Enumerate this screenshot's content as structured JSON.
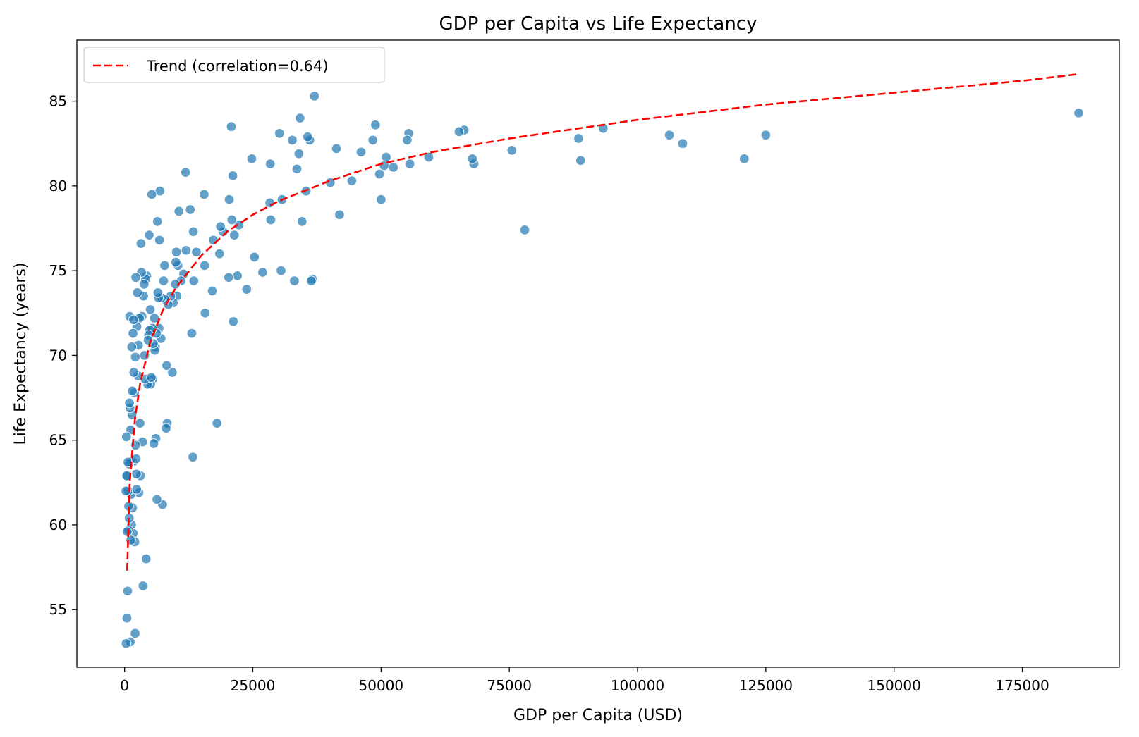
{
  "chart_data": {
    "type": "scatter",
    "title": "GDP per Capita vs Life Expectancy",
    "xlabel": "GDP per Capita (USD)",
    "ylabel": "Life Expectancy (years)",
    "xlim": [
      -9300,
      193900
    ],
    "ylim": [
      51.6,
      88.6
    ],
    "xticks": [
      0,
      25000,
      50000,
      75000,
      100000,
      125000,
      150000,
      175000
    ],
    "yticks": [
      55,
      60,
      65,
      70,
      75,
      80,
      85
    ],
    "grid": false,
    "legend_placement": "top-left",
    "point_color": "#1f77b4",
    "trend_color": "#ff0000",
    "trend_label": "Trend (correlation=0.64)",
    "trend_line": {
      "x": [
        500,
        1000,
        2000,
        3000,
        5000,
        7500,
        10000,
        15000,
        20000,
        25000,
        30000,
        40000,
        50000,
        60000,
        75000,
        100000,
        125000,
        150000,
        175000,
        186000
      ],
      "y": [
        57.3,
        62.5,
        66.2,
        68.3,
        70.8,
        72.7,
        74.0,
        75.9,
        77.3,
        78.3,
        79.1,
        80.3,
        81.3,
        82.0,
        82.8,
        83.9,
        84.8,
        85.5,
        86.2,
        86.6
      ]
    },
    "points": [
      {
        "x": 186000,
        "y": 84.3
      },
      {
        "x": 125000,
        "y": 83.0
      },
      {
        "x": 120800,
        "y": 81.6
      },
      {
        "x": 108800,
        "y": 82.5
      },
      {
        "x": 106200,
        "y": 83.0
      },
      {
        "x": 93300,
        "y": 83.4
      },
      {
        "x": 88900,
        "y": 81.5
      },
      {
        "x": 88500,
        "y": 82.8
      },
      {
        "x": 78000,
        "y": 77.4
      },
      {
        "x": 75500,
        "y": 82.1
      },
      {
        "x": 68100,
        "y": 81.3
      },
      {
        "x": 67800,
        "y": 81.6
      },
      {
        "x": 66200,
        "y": 83.3
      },
      {
        "x": 65200,
        "y": 83.2
      },
      {
        "x": 59300,
        "y": 81.7
      },
      {
        "x": 55600,
        "y": 81.3
      },
      {
        "x": 55400,
        "y": 83.1
      },
      {
        "x": 55100,
        "y": 82.7
      },
      {
        "x": 52400,
        "y": 81.1
      },
      {
        "x": 51000,
        "y": 81.7
      },
      {
        "x": 50600,
        "y": 81.2
      },
      {
        "x": 50000,
        "y": 79.2
      },
      {
        "x": 49700,
        "y": 80.7
      },
      {
        "x": 48900,
        "y": 83.6
      },
      {
        "x": 48400,
        "y": 82.7
      },
      {
        "x": 46100,
        "y": 82.0
      },
      {
        "x": 44300,
        "y": 80.3
      },
      {
        "x": 41900,
        "y": 78.3
      },
      {
        "x": 41300,
        "y": 82.2
      },
      {
        "x": 40100,
        "y": 80.2
      },
      {
        "x": 37000,
        "y": 85.3
      },
      {
        "x": 36600,
        "y": 74.5
      },
      {
        "x": 36400,
        "y": 74.4
      },
      {
        "x": 36100,
        "y": 82.7
      },
      {
        "x": 35700,
        "y": 82.9
      },
      {
        "x": 35400,
        "y": 79.7
      },
      {
        "x": 34600,
        "y": 77.9
      },
      {
        "x": 34200,
        "y": 84.0
      },
      {
        "x": 34000,
        "y": 81.9
      },
      {
        "x": 33600,
        "y": 81.0
      },
      {
        "x": 33100,
        "y": 74.4
      },
      {
        "x": 32700,
        "y": 82.7
      },
      {
        "x": 30700,
        "y": 79.2
      },
      {
        "x": 30500,
        "y": 75.0
      },
      {
        "x": 30200,
        "y": 83.1
      },
      {
        "x": 28500,
        "y": 78.0
      },
      {
        "x": 28400,
        "y": 81.3
      },
      {
        "x": 28300,
        "y": 79.0
      },
      {
        "x": 26900,
        "y": 74.9
      },
      {
        "x": 25300,
        "y": 75.8
      },
      {
        "x": 24800,
        "y": 81.6
      },
      {
        "x": 23800,
        "y": 73.9
      },
      {
        "x": 22300,
        "y": 77.7
      },
      {
        "x": 22000,
        "y": 74.7
      },
      {
        "x": 21400,
        "y": 77.1
      },
      {
        "x": 21200,
        "y": 72.0
      },
      {
        "x": 21100,
        "y": 80.6
      },
      {
        "x": 20900,
        "y": 78.0
      },
      {
        "x": 20800,
        "y": 83.5
      },
      {
        "x": 20400,
        "y": 79.2
      },
      {
        "x": 20300,
        "y": 74.6
      },
      {
        "x": 19200,
        "y": 77.3
      },
      {
        "x": 18700,
        "y": 77.6
      },
      {
        "x": 18500,
        "y": 76.0
      },
      {
        "x": 18000,
        "y": 66.0
      },
      {
        "x": 17300,
        "y": 76.8
      },
      {
        "x": 17100,
        "y": 73.8
      },
      {
        "x": 15700,
        "y": 72.5
      },
      {
        "x": 15600,
        "y": 75.3
      },
      {
        "x": 15500,
        "y": 79.5
      },
      {
        "x": 14000,
        "y": 76.1
      },
      {
        "x": 13500,
        "y": 74.4
      },
      {
        "x": 13400,
        "y": 77.3
      },
      {
        "x": 13300,
        "y": 64.0
      },
      {
        "x": 13100,
        "y": 71.3
      },
      {
        "x": 12800,
        "y": 78.6
      },
      {
        "x": 12000,
        "y": 76.2
      },
      {
        "x": 11900,
        "y": 80.8
      },
      {
        "x": 11500,
        "y": 74.8
      },
      {
        "x": 11000,
        "y": 74.4
      },
      {
        "x": 10600,
        "y": 78.5
      },
      {
        "x": 10400,
        "y": 75.3
      },
      {
        "x": 10200,
        "y": 73.5
      },
      {
        "x": 10100,
        "y": 76.1
      },
      {
        "x": 10000,
        "y": 75.5
      },
      {
        "x": 9900,
        "y": 74.2
      },
      {
        "x": 9500,
        "y": 73.1
      },
      {
        "x": 9300,
        "y": 69.0
      },
      {
        "x": 9000,
        "y": 73.5
      },
      {
        "x": 8500,
        "y": 73.0
      },
      {
        "x": 8300,
        "y": 66.0
      },
      {
        "x": 8200,
        "y": 69.4
      },
      {
        "x": 8100,
        "y": 65.7
      },
      {
        "x": 7900,
        "y": 73.3
      },
      {
        "x": 7800,
        "y": 75.3
      },
      {
        "x": 7600,
        "y": 74.4
      },
      {
        "x": 7400,
        "y": 61.2
      },
      {
        "x": 7200,
        "y": 73.4
      },
      {
        "x": 7100,
        "y": 71.0
      },
      {
        "x": 6900,
        "y": 79.7
      },
      {
        "x": 6800,
        "y": 76.8
      },
      {
        "x": 6700,
        "y": 71.6
      },
      {
        "x": 6600,
        "y": 73.4
      },
      {
        "x": 6500,
        "y": 73.7
      },
      {
        "x": 6400,
        "y": 77.9
      },
      {
        "x": 6300,
        "y": 61.5
      },
      {
        "x": 6200,
        "y": 71.3
      },
      {
        "x": 6100,
        "y": 65.1
      },
      {
        "x": 6000,
        "y": 70.5
      },
      {
        "x": 5900,
        "y": 70.3
      },
      {
        "x": 5800,
        "y": 72.2
      },
      {
        "x": 5700,
        "y": 64.8
      },
      {
        "x": 5600,
        "y": 70.7
      },
      {
        "x": 5500,
        "y": 68.6
      },
      {
        "x": 5400,
        "y": 71.6
      },
      {
        "x": 5300,
        "y": 79.5
      },
      {
        "x": 5100,
        "y": 68.3
      },
      {
        "x": 5000,
        "y": 72.7
      },
      {
        "x": 4900,
        "y": 71.5
      },
      {
        "x": 4800,
        "y": 77.1
      },
      {
        "x": 4700,
        "y": 71.2
      },
      {
        "x": 4500,
        "y": 68.3
      },
      {
        "x": 4300,
        "y": 74.7
      },
      {
        "x": 4200,
        "y": 58.0
      },
      {
        "x": 4100,
        "y": 74.5
      },
      {
        "x": 4000,
        "y": 68.6
      },
      {
        "x": 3900,
        "y": 70.0
      },
      {
        "x": 3800,
        "y": 74.2
      },
      {
        "x": 3700,
        "y": 73.5
      },
      {
        "x": 3600,
        "y": 56.4
      },
      {
        "x": 3500,
        "y": 64.9
      },
      {
        "x": 3400,
        "y": 72.3
      },
      {
        "x": 3300,
        "y": 74.9
      },
      {
        "x": 3200,
        "y": 76.6
      },
      {
        "x": 3100,
        "y": 62.9
      },
      {
        "x": 3000,
        "y": 66.0
      },
      {
        "x": 2900,
        "y": 72.2
      },
      {
        "x": 2800,
        "y": 61.9
      },
      {
        "x": 2700,
        "y": 70.6
      },
      {
        "x": 2600,
        "y": 68.8
      },
      {
        "x": 2500,
        "y": 73.7
      },
      {
        "x": 2400,
        "y": 71.7
      },
      {
        "x": 2300,
        "y": 63.0
      },
      {
        "x": 2200,
        "y": 74.6
      },
      {
        "x": 2100,
        "y": 69.9
      },
      {
        "x": 2000,
        "y": 59.0
      },
      {
        "x": 1900,
        "y": 67.8
      },
      {
        "x": 1800,
        "y": 69.0
      },
      {
        "x": 1700,
        "y": 59.5
      },
      {
        "x": 1650,
        "y": 71.3
      },
      {
        "x": 1600,
        "y": 63.7
      },
      {
        "x": 1550,
        "y": 61.0
      },
      {
        "x": 1500,
        "y": 67.9
      },
      {
        "x": 1450,
        "y": 66.5
      },
      {
        "x": 1400,
        "y": 70.5
      },
      {
        "x": 1350,
        "y": 60.0
      },
      {
        "x": 1300,
        "y": 61.8
      },
      {
        "x": 1250,
        "y": 63.7
      },
      {
        "x": 1200,
        "y": 59.1
      },
      {
        "x": 1150,
        "y": 65.6
      },
      {
        "x": 1100,
        "y": 53.1
      },
      {
        "x": 1050,
        "y": 66.9
      },
      {
        "x": 1000,
        "y": 72.3
      },
      {
        "x": 950,
        "y": 67.2
      },
      {
        "x": 900,
        "y": 60.4
      },
      {
        "x": 850,
        "y": 63.6
      },
      {
        "x": 800,
        "y": 61.1
      },
      {
        "x": 750,
        "y": 59.7
      },
      {
        "x": 700,
        "y": 62.0
      },
      {
        "x": 650,
        "y": 63.7
      },
      {
        "x": 600,
        "y": 56.1
      },
      {
        "x": 550,
        "y": 62.9
      },
      {
        "x": 500,
        "y": 59.6
      },
      {
        "x": 450,
        "y": 54.5
      },
      {
        "x": 400,
        "y": 62.9
      },
      {
        "x": 350,
        "y": 65.2
      },
      {
        "x": 300,
        "y": 53.0
      },
      {
        "x": 250,
        "y": 62.0
      },
      {
        "x": 2050,
        "y": 53.6
      },
      {
        "x": 2150,
        "y": 64.7
      },
      {
        "x": 2250,
        "y": 63.9
      },
      {
        "x": 2350,
        "y": 62.1
      },
      {
        "x": 1750,
        "y": 72.1
      },
      {
        "x": 4600,
        "y": 70.9
      },
      {
        "x": 5200,
        "y": 68.7
      }
    ]
  }
}
